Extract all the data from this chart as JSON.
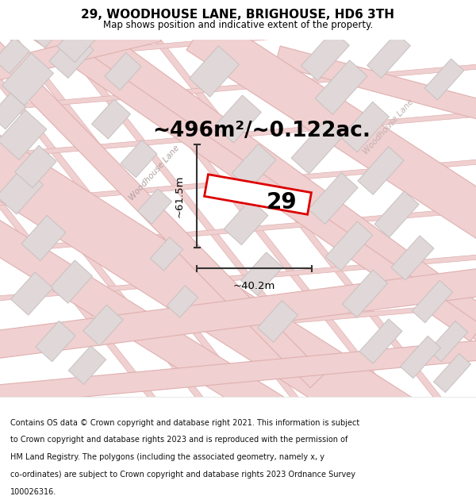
{
  "title": "29, WOODHOUSE LANE, BRIGHOUSE, HD6 3TH",
  "subtitle": "Map shows position and indicative extent of the property.",
  "area_text": "~496m²/~0.122ac.",
  "number_label": "29",
  "dim_height": "~61.5m",
  "dim_width": "~40.2m",
  "road_label_lower": "Woodhouse Lane",
  "road_label_upper": "Woodhouse Lane",
  "footer_line1": "Contains OS data © Crown copyright and database right 2021. This information is subject",
  "footer_line2": "to Crown copyright and database rights 2023 and is reproduced with the permission of",
  "footer_line3": "HM Land Registry. The polygons (including the associated geometry, namely x, y",
  "footer_line4": "co-ordinates) are subject to Crown copyright and database rights 2023 Ordnance Survey",
  "footer_line5": "100026316.",
  "bg_color": "#ffffff",
  "map_bg": "#f9f5f5",
  "road_color": "#f0d0d0",
  "road_edge_color": "#e0b0b0",
  "building_color": "#e0d8d8",
  "building_edge_color": "#c8c0c0",
  "plot_outline_color": "#dd0000",
  "dim_line_color": "#333333",
  "title_color": "#000000",
  "road_label_color": "#b0a0a0",
  "road_label_color2": "#c0b0b0"
}
